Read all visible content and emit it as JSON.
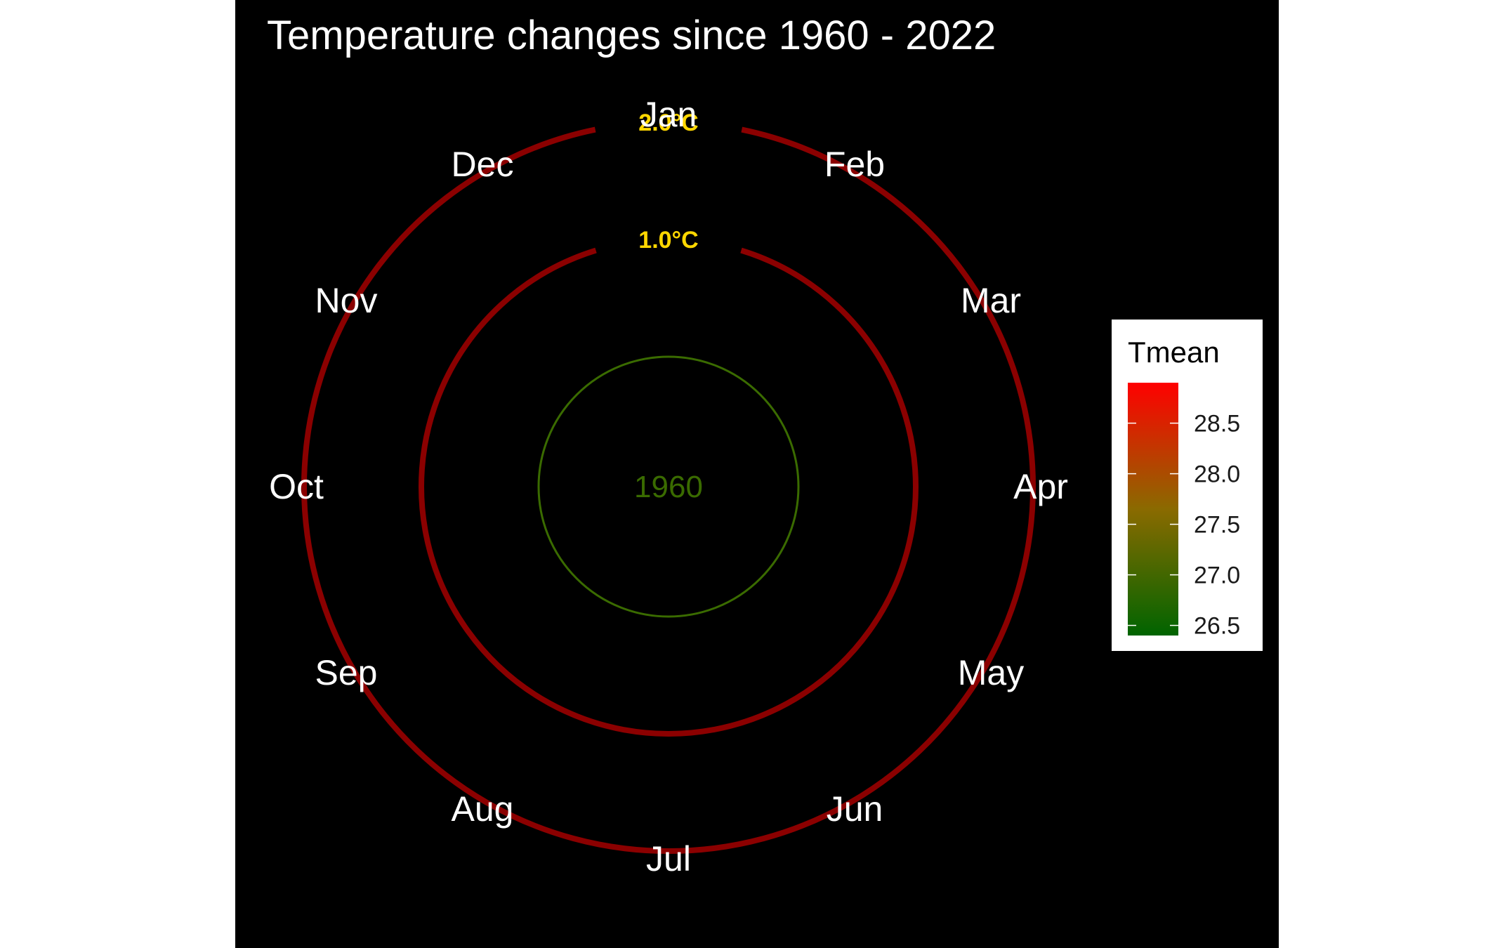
{
  "chart_data": {
    "type": "line",
    "coordinate_system": "polar",
    "title": "Temperature changes since 1960 - 2022",
    "background": "#000000",
    "theta_labels": [
      "Jan",
      "Feb",
      "Mar",
      "Apr",
      "May",
      "Jun",
      "Jul",
      "Aug",
      "Sep",
      "Oct",
      "Nov",
      "Dec"
    ],
    "reference_rings": [
      {
        "value": 1.0,
        "label": "1.0°C",
        "color": "#8b0000"
      },
      {
        "value": 2.0,
        "label": "2.0°C",
        "color": "#8b0000"
      }
    ],
    "ring_label_color": "#ffd700",
    "series": [
      {
        "year_label": "1960",
        "color": "#3a6b00",
        "months": [
          "Jan",
          "Feb",
          "Mar",
          "Apr",
          "May",
          "Jun",
          "Jul",
          "Aug",
          "Sep",
          "Oct",
          "Nov",
          "Dec"
        ],
        "anomaly": [
          0.0,
          0.0,
          0.0,
          0.0,
          0.0,
          0.0,
          0.0,
          0.0,
          0.0,
          0.0,
          0.0,
          0.0
        ]
      }
    ],
    "legend": {
      "title": "Tmean",
      "type": "colorbar",
      "placement": "right",
      "range": [
        26.4,
        28.9
      ],
      "ticks": [
        "26.5",
        "27.0",
        "27.5",
        "28.0",
        "28.5"
      ],
      "colors": [
        "#006400",
        "#ff0000"
      ]
    }
  }
}
